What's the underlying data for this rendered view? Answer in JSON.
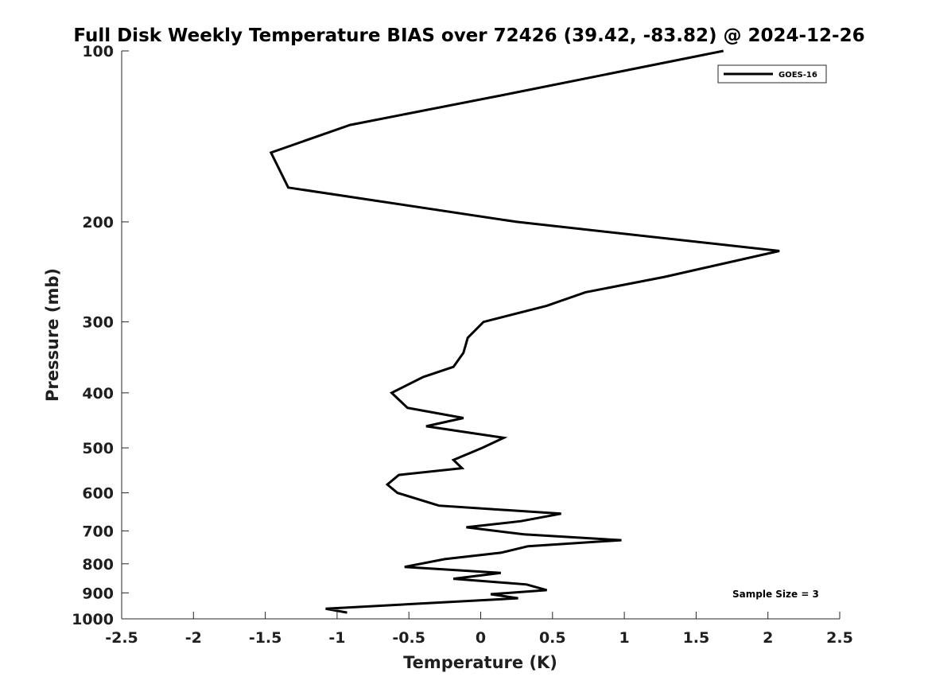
{
  "chart_data": {
    "type": "line",
    "title": "Full Disk Weekly Temperature BIAS over 72426 (39.42, -83.82) @ 2024-12-26",
    "xlabel": "Temperature (K)",
    "ylabel": "Pressure (mb)",
    "xlim": [
      -2.5,
      2.5
    ],
    "ylim": [
      100,
      1000
    ],
    "y_scale": "log",
    "y_reversed": true,
    "grid": false,
    "x_ticks": [
      -2.5,
      -2,
      -1.5,
      -1,
      -0.5,
      0,
      0.5,
      1,
      1.5,
      2,
      2.5
    ],
    "x_tick_labels": [
      "-2.5",
      "-2",
      "-1.5",
      "-1",
      "-0.5",
      "0",
      "0.5",
      "1",
      "1.5",
      "2",
      "2.5"
    ],
    "y_ticks": [
      100,
      200,
      300,
      400,
      500,
      600,
      700,
      800,
      900,
      1000
    ],
    "y_tick_labels": [
      "100",
      "200",
      "300",
      "400",
      "500",
      "600",
      "700",
      "800",
      "900",
      "1000"
    ],
    "legend_position": "top-right",
    "annotation": "Sample Size = 3",
    "series": [
      {
        "name": "GOES-16",
        "color": "#000000",
        "points": [
          [
            1.69,
            100
          ],
          [
            0.2,
            119
          ],
          [
            -0.91,
            135
          ],
          [
            -1.46,
            151
          ],
          [
            -1.34,
            174
          ],
          [
            0.25,
            200
          ],
          [
            2.08,
            225
          ],
          [
            1.28,
            250
          ],
          [
            0.73,
            266
          ],
          [
            0.46,
            281
          ],
          [
            0.02,
            300
          ],
          [
            -0.09,
            320
          ],
          [
            -0.12,
            340
          ],
          [
            -0.19,
            360
          ],
          [
            -0.4,
            375
          ],
          [
            -0.62,
            400
          ],
          [
            -0.51,
            425
          ],
          [
            -0.12,
            443
          ],
          [
            -0.38,
            458
          ],
          [
            0.16,
            480
          ],
          [
            0.01,
            500
          ],
          [
            -0.19,
            525
          ],
          [
            -0.13,
            543
          ],
          [
            -0.57,
            558
          ],
          [
            -0.65,
            580
          ],
          [
            -0.58,
            600
          ],
          [
            -0.29,
            632
          ],
          [
            0.56,
            653
          ],
          [
            0.28,
            673
          ],
          [
            -0.1,
            690
          ],
          [
            0.3,
            710
          ],
          [
            0.98,
            727
          ],
          [
            0.33,
            745
          ],
          [
            0.14,
            765
          ],
          [
            -0.25,
            785
          ],
          [
            -0.53,
            810
          ],
          [
            0.14,
            830
          ],
          [
            -0.19,
            850
          ],
          [
            0.32,
            870
          ],
          [
            0.46,
            890
          ],
          [
            0.07,
            905
          ],
          [
            0.26,
            920
          ],
          [
            -1.08,
            960
          ],
          [
            -0.93,
            975
          ]
        ]
      }
    ]
  }
}
